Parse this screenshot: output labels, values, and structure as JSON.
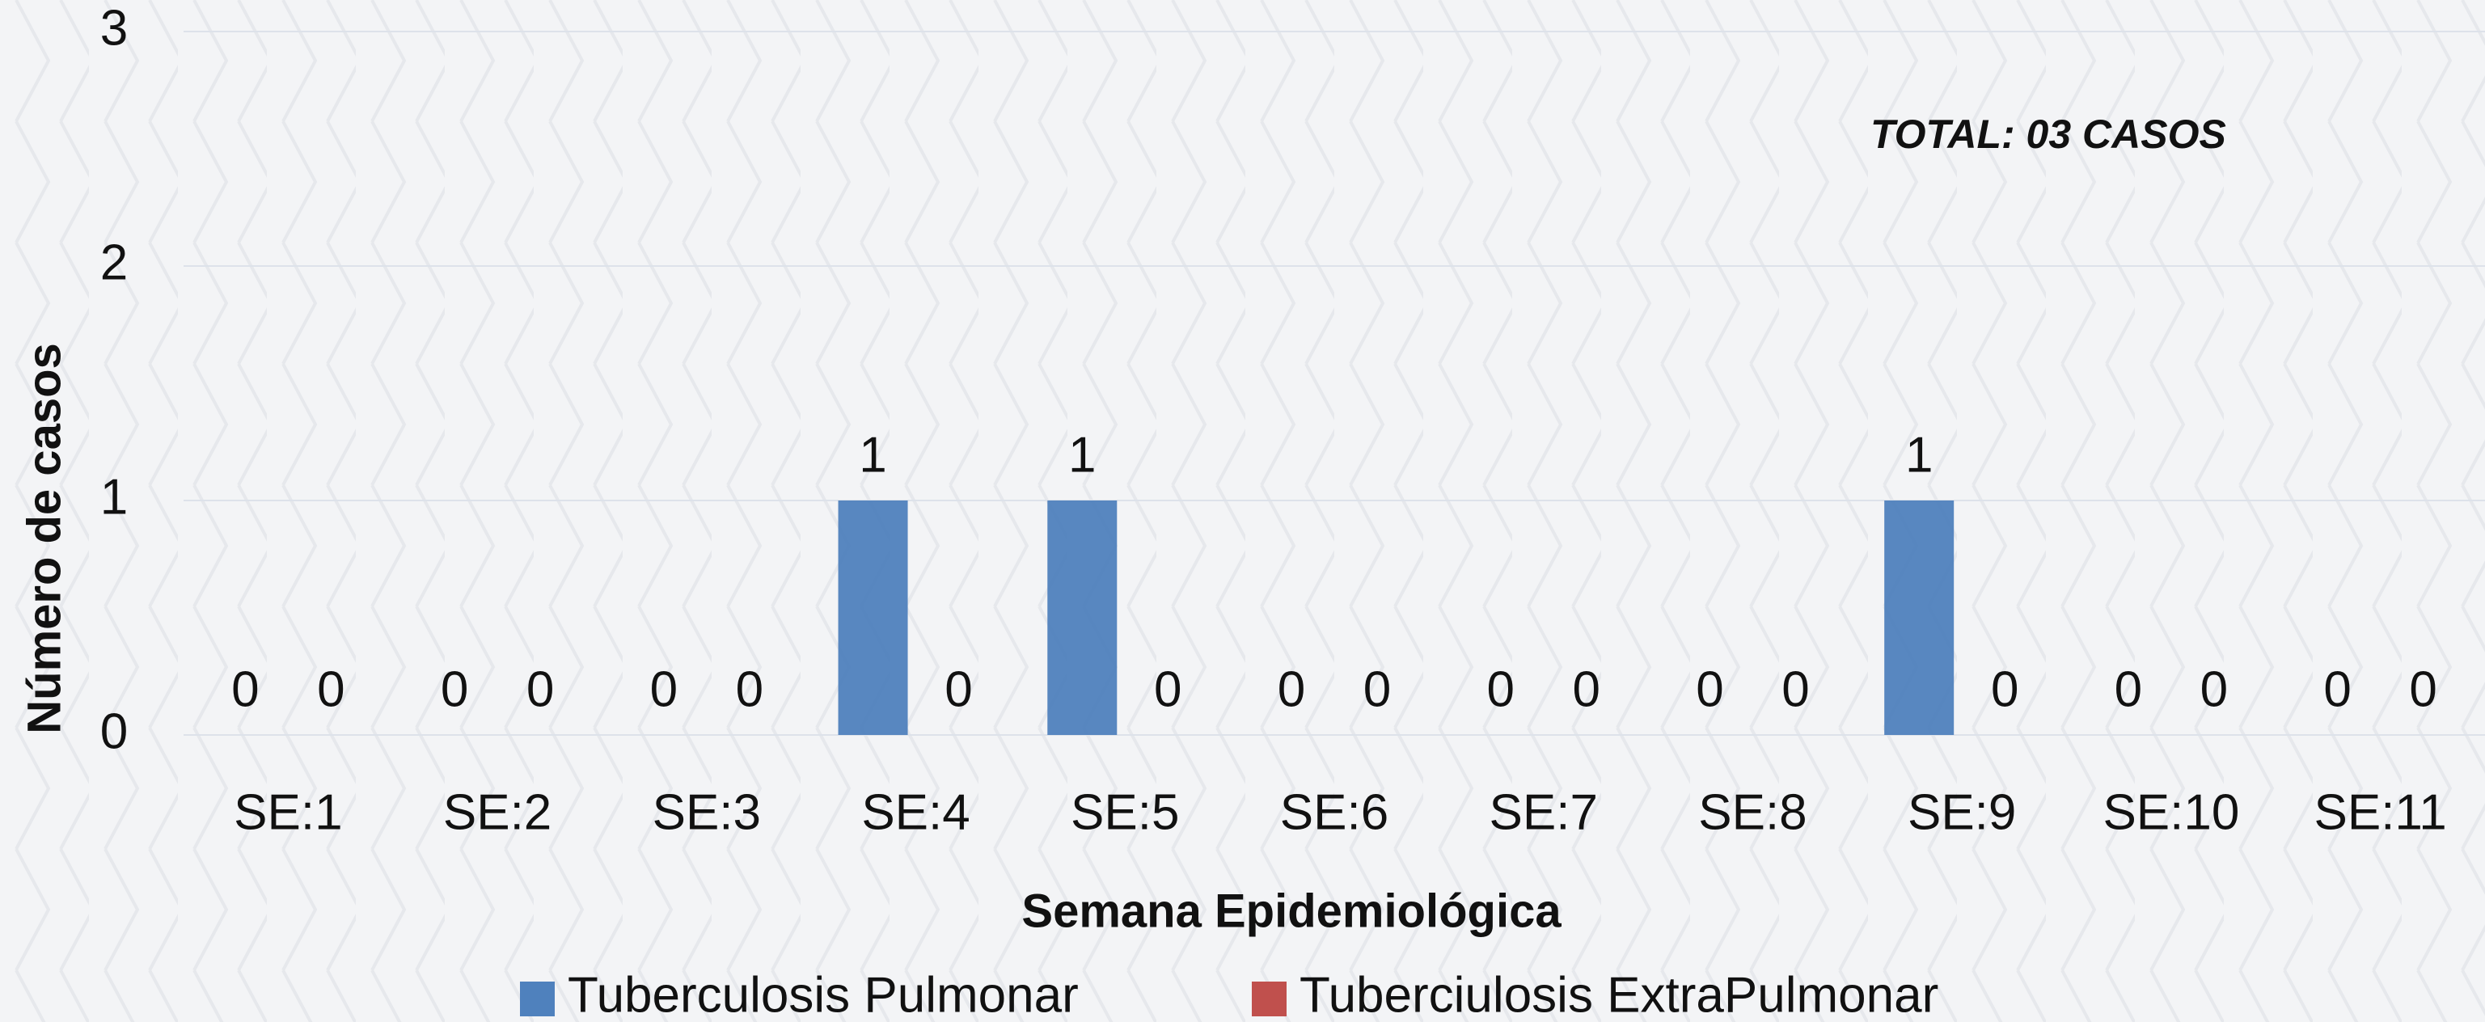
{
  "chart_data": {
    "type": "bar",
    "annotation": "TOTAL: 03 CASOS",
    "x_label": "Semana Epidemiológica",
    "y_label": "Número de casos",
    "categories": [
      "SE:1",
      "SE:2",
      "SE:3",
      "SE:4",
      "SE:5",
      "SE:6",
      "SE:7",
      "SE:8",
      "SE:9",
      "SE:10",
      "SE:11"
    ],
    "series": [
      {
        "name": "Tuberculosis Pulmonar",
        "color": "#4f81bd",
        "values": [
          0,
          0,
          0,
          1,
          1,
          0,
          0,
          0,
          1,
          0,
          0
        ]
      },
      {
        "name": "Tuberciulosis ExtraPulmonar",
        "color": "#c0504d",
        "values": [
          0,
          0,
          0,
          0,
          0,
          0,
          0,
          0,
          0,
          0,
          0
        ]
      }
    ],
    "ylim": [
      0,
      3
    ],
    "yticks": [
      0,
      1,
      2,
      3
    ],
    "grid": true,
    "legend": "bottom"
  }
}
